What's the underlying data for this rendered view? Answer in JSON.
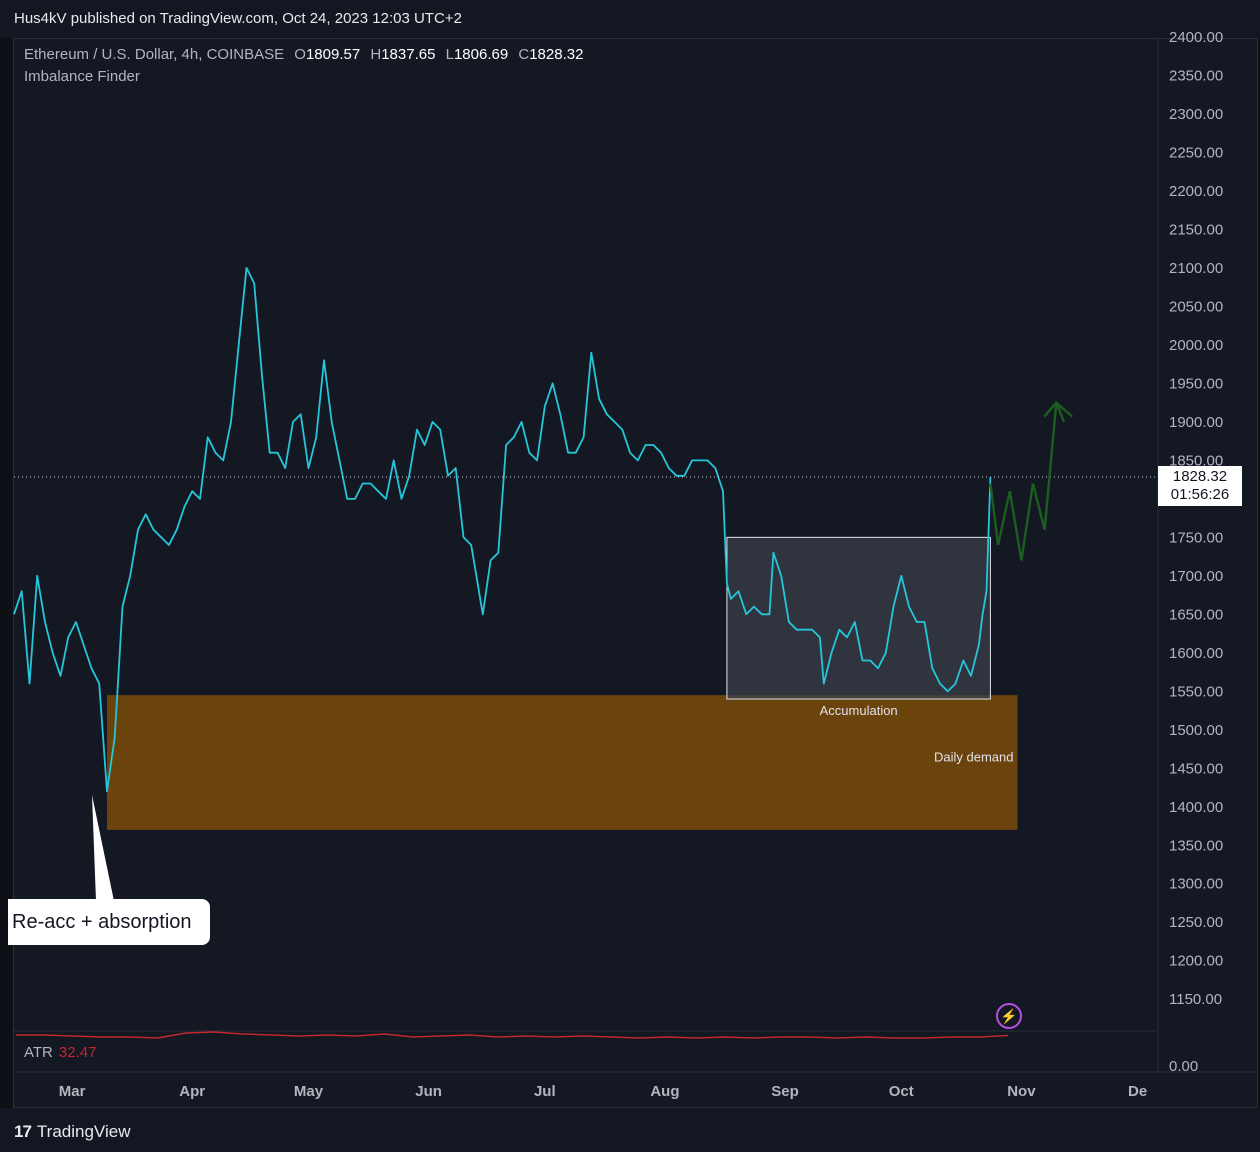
{
  "header": {
    "published_line": "Hus4kV published on TradingView.com, Oct 24, 2023 12:03 UTC+2"
  },
  "legend": {
    "symbol": "Ethereum / U.S. Dollar, 4h, COINBASE",
    "open_key": "O",
    "open": "1809.57",
    "high_key": "H",
    "high": "1837.65",
    "low_key": "L",
    "low": "1806.69",
    "close_key": "C",
    "close": "1828.32",
    "indicator": "Imbalance Finder"
  },
  "price_tag": {
    "price": "1828.32",
    "countdown": "01:56:26"
  },
  "annotations": {
    "accumulation": "Accumulation",
    "daily_demand": "Daily demand",
    "callout": "Re-acc + absorption"
  },
  "atr": {
    "label": "ATR",
    "value": "32.47",
    "axis_value": "0.00"
  },
  "footer": {
    "brand": "TradingView",
    "brand_mark": "17"
  },
  "colors": {
    "background": "#141823",
    "price_line": "#26c6da",
    "demand_zone": "#6b430d",
    "accumulation_box": "#3a3d49",
    "projection": "#1b5e20",
    "atr_line": "#c2262e"
  },
  "chart_data": {
    "type": "line",
    "title": "",
    "y_axis": {
      "ticks": [
        1150,
        1200,
        1250,
        1300,
        1350,
        1400,
        1450,
        1500,
        1550,
        1600,
        1650,
        1700,
        1750,
        1800,
        1850,
        1900,
        1950,
        2000,
        2050,
        2100,
        2150,
        2200,
        2250,
        2300,
        2350,
        2400
      ],
      "tick_labels": [
        "1150.00",
        "1200.00",
        "1250.00",
        "1300.00",
        "1350.00",
        "1400.00",
        "1450.00",
        "1500.00",
        "1550.00",
        "1600.00",
        "1650.00",
        "1700.00",
        "1750.00",
        "1800.00",
        "1850.00",
        "1900.00",
        "1950.00",
        "2000.00",
        "2050.00",
        "2100.00",
        "2150.00",
        "2200.00",
        "2250.00",
        "2300.00",
        "2350.00",
        "2400.00"
      ],
      "range": [
        1110,
        2400
      ]
    },
    "x_axis": {
      "ticks": [
        "2023-03-01",
        "2023-04-01",
        "2023-05-01",
        "2023-06-01",
        "2023-07-01",
        "2023-08-01",
        "2023-09-01",
        "2023-10-01",
        "2023-11-01",
        "2023-12-01"
      ],
      "tick_labels": [
        "Mar",
        "Apr",
        "May",
        "Jun",
        "Jul",
        "Aug",
        "Sep",
        "Oct",
        "Nov",
        "De"
      ],
      "range": [
        "2023-02-14",
        "2023-12-06"
      ]
    },
    "series": [
      {
        "values": [
          [
            "2023-02-14",
            1650
          ],
          [
            "2023-02-16",
            1680
          ],
          [
            "2023-02-18",
            1560
          ],
          [
            "2023-02-20",
            1700
          ],
          [
            "2023-02-22",
            1640
          ],
          [
            "2023-02-24",
            1600
          ],
          [
            "2023-02-26",
            1570
          ],
          [
            "2023-02-28",
            1620
          ],
          [
            "2023-03-02",
            1640
          ],
          [
            "2023-03-04",
            1610
          ],
          [
            "2023-03-06",
            1580
          ],
          [
            "2023-03-08",
            1560
          ],
          [
            "2023-03-10",
            1420
          ],
          [
            "2023-03-12",
            1490
          ],
          [
            "2023-03-14",
            1660
          ],
          [
            "2023-03-16",
            1700
          ],
          [
            "2023-03-18",
            1760
          ],
          [
            "2023-03-20",
            1780
          ],
          [
            "2023-03-22",
            1760
          ],
          [
            "2023-03-24",
            1750
          ],
          [
            "2023-03-26",
            1740
          ],
          [
            "2023-03-28",
            1760
          ],
          [
            "2023-03-30",
            1790
          ],
          [
            "2023-04-01",
            1810
          ],
          [
            "2023-04-03",
            1800
          ],
          [
            "2023-04-05",
            1880
          ],
          [
            "2023-04-07",
            1860
          ],
          [
            "2023-04-09",
            1850
          ],
          [
            "2023-04-11",
            1900
          ],
          [
            "2023-04-13",
            2000
          ],
          [
            "2023-04-15",
            2100
          ],
          [
            "2023-04-17",
            2080
          ],
          [
            "2023-04-19",
            1960
          ],
          [
            "2023-04-21",
            1860
          ],
          [
            "2023-04-23",
            1860
          ],
          [
            "2023-04-25",
            1840
          ],
          [
            "2023-04-27",
            1900
          ],
          [
            "2023-04-29",
            1910
          ],
          [
            "2023-05-01",
            1840
          ],
          [
            "2023-05-03",
            1880
          ],
          [
            "2023-05-05",
            1980
          ],
          [
            "2023-05-07",
            1900
          ],
          [
            "2023-05-09",
            1850
          ],
          [
            "2023-05-11",
            1800
          ],
          [
            "2023-05-13",
            1800
          ],
          [
            "2023-05-15",
            1820
          ],
          [
            "2023-05-17",
            1820
          ],
          [
            "2023-05-19",
            1810
          ],
          [
            "2023-05-21",
            1800
          ],
          [
            "2023-05-23",
            1850
          ],
          [
            "2023-05-25",
            1800
          ],
          [
            "2023-05-27",
            1830
          ],
          [
            "2023-05-29",
            1890
          ],
          [
            "2023-05-31",
            1870
          ],
          [
            "2023-06-02",
            1900
          ],
          [
            "2023-06-04",
            1890
          ],
          [
            "2023-06-06",
            1830
          ],
          [
            "2023-06-08",
            1840
          ],
          [
            "2023-06-10",
            1750
          ],
          [
            "2023-06-12",
            1740
          ],
          [
            "2023-06-15",
            1650
          ],
          [
            "2023-06-17",
            1720
          ],
          [
            "2023-06-19",
            1730
          ],
          [
            "2023-06-21",
            1870
          ],
          [
            "2023-06-23",
            1880
          ],
          [
            "2023-06-25",
            1900
          ],
          [
            "2023-06-27",
            1860
          ],
          [
            "2023-06-29",
            1850
          ],
          [
            "2023-07-01",
            1920
          ],
          [
            "2023-07-03",
            1950
          ],
          [
            "2023-07-05",
            1910
          ],
          [
            "2023-07-07",
            1860
          ],
          [
            "2023-07-09",
            1860
          ],
          [
            "2023-07-11",
            1880
          ],
          [
            "2023-07-13",
            1990
          ],
          [
            "2023-07-15",
            1930
          ],
          [
            "2023-07-17",
            1910
          ],
          [
            "2023-07-19",
            1900
          ],
          [
            "2023-07-21",
            1890
          ],
          [
            "2023-07-23",
            1860
          ],
          [
            "2023-07-25",
            1850
          ],
          [
            "2023-07-27",
            1870
          ],
          [
            "2023-07-29",
            1870
          ],
          [
            "2023-07-31",
            1860
          ],
          [
            "2023-08-02",
            1840
          ],
          [
            "2023-08-04",
            1830
          ],
          [
            "2023-08-06",
            1830
          ],
          [
            "2023-08-08",
            1850
          ],
          [
            "2023-08-10",
            1850
          ],
          [
            "2023-08-12",
            1850
          ],
          [
            "2023-08-14",
            1840
          ],
          [
            "2023-08-16",
            1810
          ],
          [
            "2023-08-17",
            1690
          ],
          [
            "2023-08-18",
            1670
          ],
          [
            "2023-08-20",
            1680
          ],
          [
            "2023-08-22",
            1650
          ],
          [
            "2023-08-24",
            1660
          ],
          [
            "2023-08-26",
            1650
          ],
          [
            "2023-08-28",
            1650
          ],
          [
            "2023-08-29",
            1730
          ],
          [
            "2023-08-31",
            1700
          ],
          [
            "2023-09-02",
            1640
          ],
          [
            "2023-09-04",
            1630
          ],
          [
            "2023-09-06",
            1630
          ],
          [
            "2023-09-08",
            1630
          ],
          [
            "2023-09-10",
            1620
          ],
          [
            "2023-09-11",
            1560
          ],
          [
            "2023-09-13",
            1600
          ],
          [
            "2023-09-15",
            1630
          ],
          [
            "2023-09-17",
            1620
          ],
          [
            "2023-09-19",
            1640
          ],
          [
            "2023-09-21",
            1590
          ],
          [
            "2023-09-23",
            1590
          ],
          [
            "2023-09-25",
            1580
          ],
          [
            "2023-09-27",
            1600
          ],
          [
            "2023-09-29",
            1660
          ],
          [
            "2023-10-01",
            1700
          ],
          [
            "2023-10-03",
            1660
          ],
          [
            "2023-10-05",
            1640
          ],
          [
            "2023-10-07",
            1640
          ],
          [
            "2023-10-09",
            1580
          ],
          [
            "2023-10-11",
            1560
          ],
          [
            "2023-10-13",
            1550
          ],
          [
            "2023-10-15",
            1560
          ],
          [
            "2023-10-17",
            1590
          ],
          [
            "2023-10-19",
            1570
          ],
          [
            "2023-10-21",
            1610
          ],
          [
            "2023-10-22",
            1650
          ],
          [
            "2023-10-23",
            1680
          ],
          [
            "2023-10-24",
            1828.32
          ]
        ]
      }
    ],
    "zones": [
      {
        "label": "Daily demand",
        "x_start": "2023-03-10",
        "x_end": "2023-10-31",
        "y_low": 1370,
        "y_high": 1545
      },
      {
        "label": "Accumulation",
        "x_start": "2023-08-17",
        "x_end": "2023-10-24",
        "y_low": 1540,
        "y_high": 1750
      }
    ],
    "projection": [
      [
        "2023-10-24",
        1820
      ],
      [
        "2023-10-26",
        1740
      ],
      [
        "2023-10-29",
        1810
      ],
      [
        "2023-11-01",
        1720
      ],
      [
        "2023-11-04",
        1820
      ],
      [
        "2023-11-07",
        1760
      ],
      [
        "2023-11-10",
        1925
      ],
      [
        "2023-11-12",
        1900
      ]
    ],
    "current_price": 1828.32,
    "atr": {
      "values": [
        33,
        33,
        32,
        31,
        31,
        30,
        35,
        36,
        34,
        33,
        32,
        33,
        32,
        34,
        31,
        32,
        33,
        31,
        32,
        31,
        32,
        31,
        30,
        31,
        30,
        31,
        30,
        31,
        31,
        30,
        31,
        30,
        30,
        31,
        31,
        32.47
      ],
      "range": [
        0,
        60
      ]
    }
  }
}
